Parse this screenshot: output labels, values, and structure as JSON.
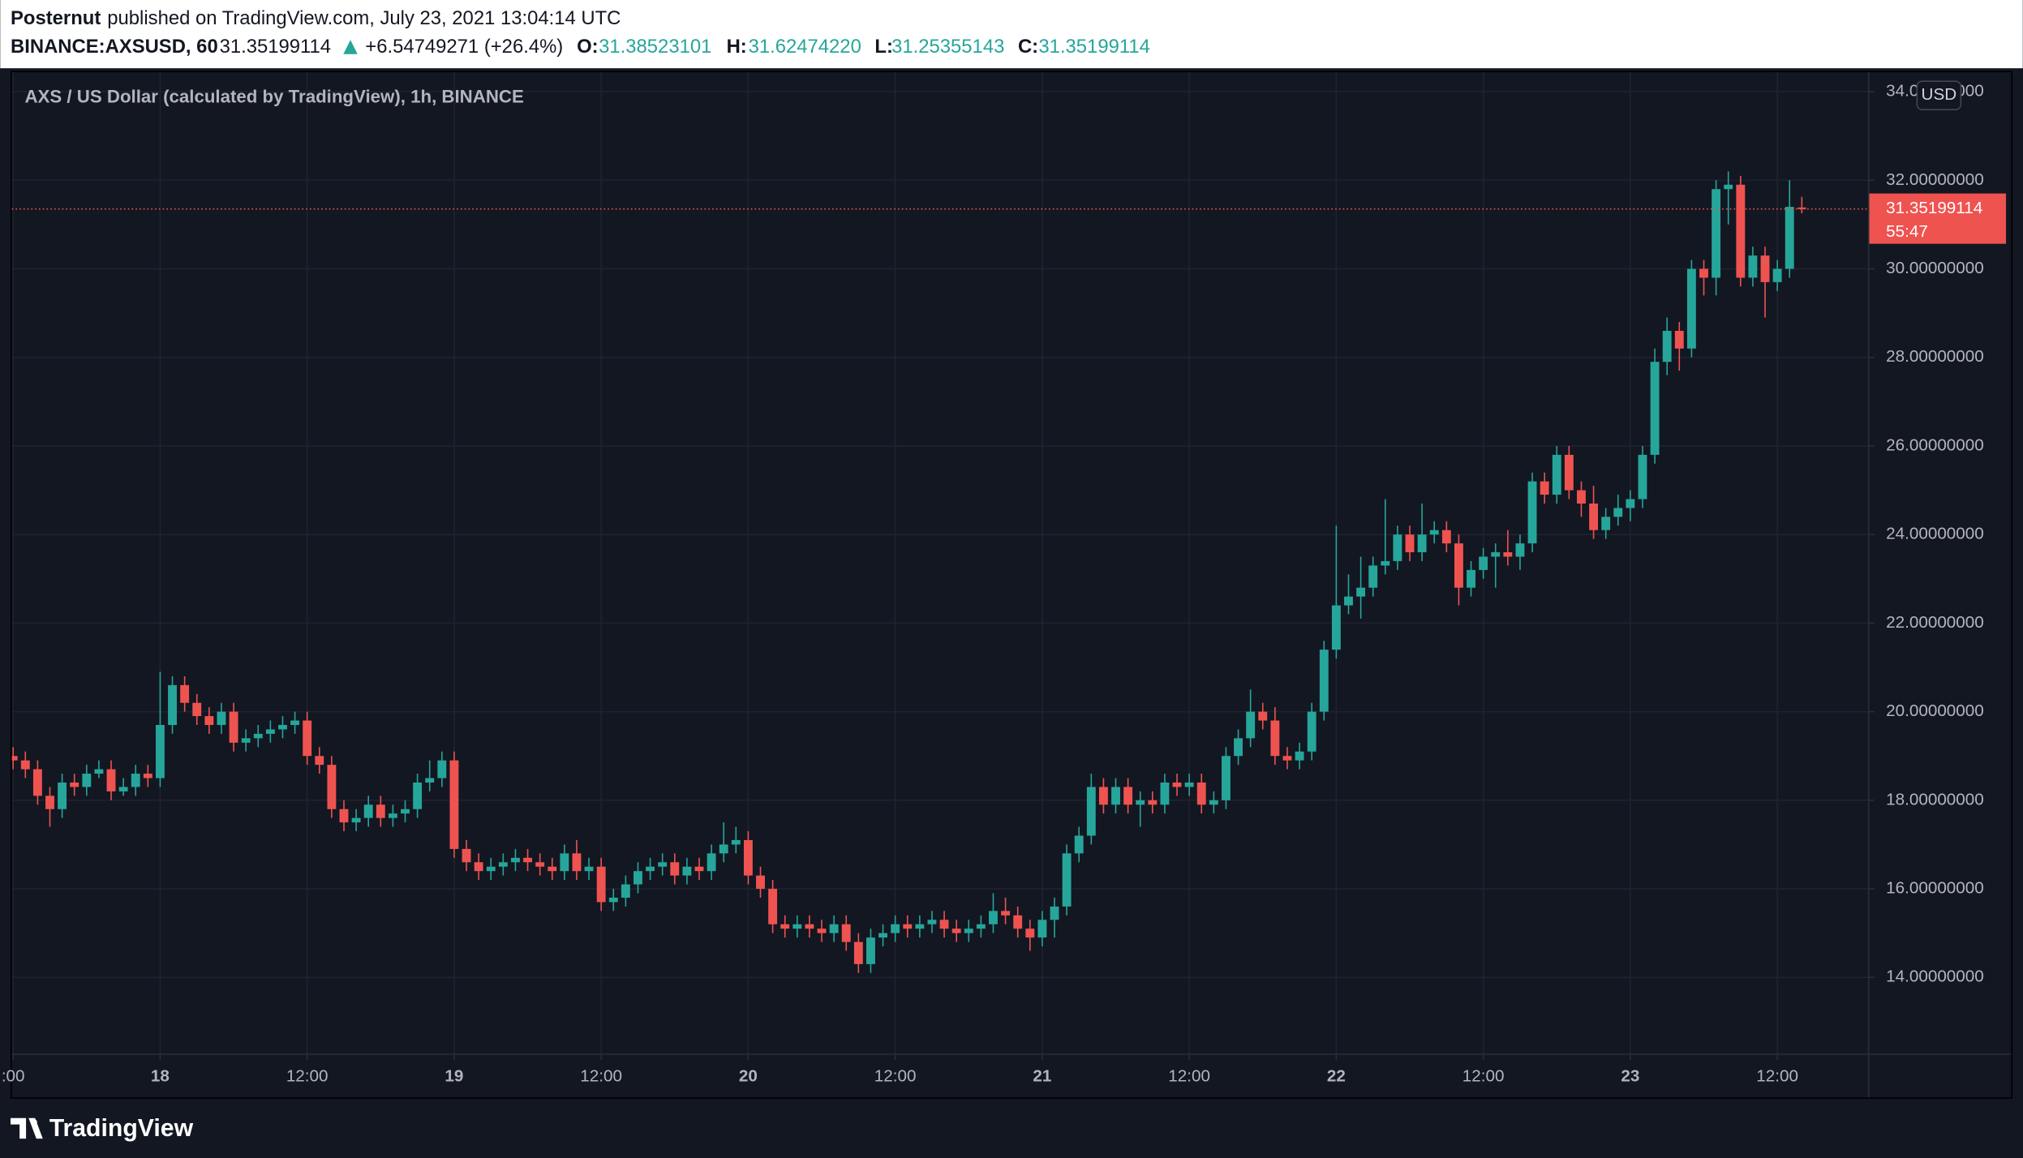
{
  "header": {
    "publisher": "Posternut",
    "published": "published on TradingView.com, July 23, 2021 13:04:14 UTC",
    "symbol": "BINANCE:AXSUSD, 60",
    "change": "+6.54749271 (+26.4%)",
    "ohlc_labels": [
      "O:",
      "H:",
      "L:",
      "C:"
    ]
  },
  "footer": {
    "logo": "TradingView"
  },
  "chart_data": {
    "type": "candlestick",
    "title": "AXS / US Dollar (calculated by TradingView), 1h, BINANCE",
    "currency": "USD",
    "countdown": "55:47",
    "last_bar_labels": [
      "31.38523101",
      "31.62474220",
      "31.25355143",
      "31.35199114"
    ],
    "up_color": "#26a69a",
    "down_color": "#ef5350",
    "grid": true,
    "xlim": [
      0,
      151.4
    ],
    "ylim": [
      12.28,
      34.44
    ],
    "xticks": [
      {
        "value": 0,
        "label": ":00"
      },
      {
        "value": 12,
        "label": "18"
      },
      {
        "value": 24,
        "label": "12:00"
      },
      {
        "value": 36,
        "label": "19"
      },
      {
        "value": 48,
        "label": "12:00"
      },
      {
        "value": 60,
        "label": "20"
      },
      {
        "value": 72,
        "label": "12:00"
      },
      {
        "value": 84,
        "label": "21"
      },
      {
        "value": 96,
        "label": "12:00"
      },
      {
        "value": 108,
        "label": "22"
      },
      {
        "value": 120,
        "label": "12:00"
      },
      {
        "value": 132,
        "label": "23"
      },
      {
        "value": 144,
        "label": "12:00"
      }
    ],
    "yticks": [
      {
        "value": 14,
        "label": "14.00000000"
      },
      {
        "value": 16,
        "label": "16.00000000"
      },
      {
        "value": 18,
        "label": "18.00000000"
      },
      {
        "value": 20,
        "label": "20.00000000"
      },
      {
        "value": 22,
        "label": "22.00000000"
      },
      {
        "value": 24,
        "label": "24.00000000"
      },
      {
        "value": 26,
        "label": "26.00000000"
      },
      {
        "value": 28,
        "label": "28.00000000"
      },
      {
        "value": 30,
        "label": "30.00000000"
      },
      {
        "value": 32,
        "label": "32.00000000"
      },
      {
        "value": 34,
        "label": "34.00000000"
      }
    ],
    "open": [
      19.0,
      18.9,
      18.7,
      18.1,
      17.8,
      18.4,
      18.3,
      18.6,
      18.7,
      18.2,
      18.3,
      18.6,
      18.5,
      19.7,
      20.6,
      20.2,
      19.9,
      19.7,
      20.0,
      19.3,
      19.4,
      19.5,
      19.6,
      19.7,
      19.8,
      19.0,
      18.8,
      17.8,
      17.5,
      17.6,
      17.9,
      17.6,
      17.7,
      17.8,
      18.4,
      18.5,
      18.9,
      16.9,
      16.6,
      16.4,
      16.5,
      16.6,
      16.7,
      16.6,
      16.5,
      16.4,
      16.8,
      16.4,
      16.5,
      15.7,
      15.8,
      16.1,
      16.4,
      16.5,
      16.6,
      16.3,
      16.5,
      16.4,
      16.8,
      17.0,
      17.1,
      16.3,
      16.0,
      15.2,
      15.1,
      15.2,
      15.1,
      15.0,
      15.2,
      14.8,
      14.3,
      14.9,
      15.0,
      15.2,
      15.1,
      15.2,
      15.3,
      15.1,
      15.0,
      15.1,
      15.2,
      15.5,
      15.4,
      15.1,
      14.9,
      15.3,
      15.6,
      16.8,
      17.2,
      18.3,
      17.9,
      18.3,
      17.9,
      18.0,
      17.9,
      18.4,
      18.3,
      18.4,
      17.9,
      18.0,
      19.0,
      19.4,
      20.0,
      19.8,
      19.0,
      18.9,
      19.1,
      20.0,
      21.4,
      22.4,
      22.6,
      22.8,
      23.3,
      23.4,
      24.0,
      23.6,
      24.0,
      24.1,
      23.8,
      22.8,
      23.2,
      23.5,
      23.6,
      23.5,
      23.8,
      25.2,
      24.9,
      25.8,
      25.0,
      24.7,
      24.1,
      24.4,
      24.6,
      24.8,
      25.8,
      27.9,
      28.6,
      28.2,
      30.0,
      29.8,
      31.8,
      31.9,
      29.8,
      30.3,
      29.7,
      30.0,
      31.38523101
    ],
    "high": [
      19.2,
      19.1,
      18.9,
      18.3,
      18.6,
      18.6,
      18.8,
      18.9,
      18.9,
      18.5,
      18.8,
      18.8,
      20.9,
      20.8,
      20.8,
      20.4,
      20.1,
      20.2,
      20.2,
      19.6,
      19.7,
      19.8,
      19.9,
      20.0,
      20.0,
      19.2,
      19.0,
      18.0,
      17.8,
      18.1,
      18.1,
      17.9,
      18.0,
      18.6,
      18.9,
      19.1,
      19.1,
      17.1,
      16.8,
      16.7,
      16.8,
      16.9,
      16.9,
      16.8,
      16.7,
      17.0,
      17.1,
      16.7,
      16.7,
      16.0,
      16.3,
      16.6,
      16.7,
      16.8,
      16.8,
      16.7,
      16.7,
      17.0,
      17.5,
      17.4,
      17.3,
      16.5,
      16.2,
      15.4,
      15.4,
      15.4,
      15.3,
      15.4,
      15.4,
      15.0,
      15.1,
      15.2,
      15.4,
      15.4,
      15.4,
      15.5,
      15.5,
      15.3,
      15.3,
      15.4,
      15.9,
      15.8,
      15.6,
      15.3,
      15.5,
      15.8,
      17.0,
      17.4,
      18.6,
      18.5,
      18.5,
      18.5,
      18.2,
      18.2,
      18.6,
      18.6,
      18.6,
      18.6,
      18.2,
      19.2,
      19.6,
      20.5,
      20.2,
      20.1,
      19.2,
      19.3,
      20.2,
      21.6,
      24.2,
      23.1,
      23.5,
      23.5,
      24.8,
      24.2,
      24.2,
      24.7,
      24.3,
      24.3,
      24.0,
      23.4,
      23.7,
      23.8,
      24.1,
      24.0,
      25.4,
      25.4,
      26.0,
      26.0,
      25.2,
      25.1,
      24.6,
      24.9,
      25.0,
      26.0,
      28.2,
      28.9,
      28.8,
      30.2,
      30.2,
      32.0,
      32.2,
      32.1,
      30.5,
      30.5,
      30.2,
      32.0,
      31.6247422
    ],
    "low": [
      18.7,
      18.5,
      17.9,
      17.4,
      17.6,
      18.1,
      18.1,
      18.5,
      18.0,
      18.1,
      18.1,
      18.3,
      18.3,
      19.5,
      20.0,
      19.7,
      19.5,
      19.5,
      19.1,
      19.1,
      19.2,
      19.3,
      19.4,
      19.5,
      18.8,
      18.6,
      17.6,
      17.3,
      17.3,
      17.4,
      17.4,
      17.4,
      17.5,
      17.6,
      18.2,
      18.3,
      16.7,
      16.4,
      16.2,
      16.2,
      16.3,
      16.4,
      16.4,
      16.3,
      16.2,
      16.2,
      16.2,
      16.2,
      15.5,
      15.5,
      15.6,
      15.9,
      16.2,
      16.3,
      16.1,
      16.1,
      16.2,
      16.2,
      16.6,
      16.8,
      16.1,
      15.8,
      15.0,
      14.9,
      14.9,
      14.9,
      14.8,
      14.8,
      14.6,
      14.1,
      14.1,
      14.7,
      14.8,
      14.9,
      14.9,
      15.0,
      14.9,
      14.8,
      14.8,
      14.9,
      15.0,
      15.2,
      14.9,
      14.6,
      14.7,
      14.9,
      15.4,
      16.6,
      17.0,
      17.7,
      17.7,
      17.7,
      17.4,
      17.7,
      17.7,
      18.1,
      18.1,
      17.7,
      17.7,
      17.8,
      18.8,
      19.2,
      19.6,
      18.8,
      18.7,
      18.7,
      18.9,
      19.8,
      21.2,
      22.2,
      22.1,
      22.6,
      23.1,
      23.2,
      23.4,
      23.4,
      23.8,
      23.6,
      22.4,
      22.6,
      23.0,
      22.8,
      23.3,
      23.2,
      23.6,
      24.7,
      24.7,
      24.8,
      24.4,
      23.9,
      23.9,
      24.2,
      24.3,
      24.6,
      25.6,
      27.6,
      27.7,
      28.0,
      29.4,
      29.4,
      31.0,
      29.6,
      29.6,
      28.9,
      29.5,
      29.8,
      31.25355143
    ],
    "close": [
      18.9,
      18.7,
      18.1,
      17.8,
      18.4,
      18.3,
      18.6,
      18.7,
      18.2,
      18.3,
      18.6,
      18.5,
      19.7,
      20.6,
      20.2,
      19.9,
      19.7,
      20.0,
      19.3,
      19.4,
      19.5,
      19.6,
      19.7,
      19.8,
      19.0,
      18.8,
      17.8,
      17.5,
      17.6,
      17.9,
      17.6,
      17.7,
      17.8,
      18.4,
      18.5,
      18.9,
      16.9,
      16.6,
      16.4,
      16.5,
      16.6,
      16.7,
      16.6,
      16.5,
      16.4,
      16.8,
      16.4,
      16.5,
      15.7,
      15.8,
      16.1,
      16.4,
      16.5,
      16.6,
      16.3,
      16.5,
      16.4,
      16.8,
      17.0,
      17.1,
      16.3,
      16.0,
      15.2,
      15.1,
      15.2,
      15.1,
      15.0,
      15.2,
      14.8,
      14.3,
      14.9,
      15.0,
      15.2,
      15.1,
      15.2,
      15.3,
      15.1,
      15.0,
      15.1,
      15.2,
      15.5,
      15.4,
      15.1,
      14.9,
      15.3,
      15.6,
      16.8,
      17.2,
      18.3,
      17.9,
      18.3,
      17.9,
      18.0,
      17.9,
      18.4,
      18.3,
      18.4,
      17.9,
      18.0,
      19.0,
      19.4,
      20.0,
      19.8,
      19.0,
      18.9,
      19.1,
      20.0,
      21.4,
      22.4,
      22.6,
      22.8,
      23.3,
      23.4,
      24.0,
      23.6,
      24.0,
      24.1,
      23.8,
      22.8,
      23.2,
      23.5,
      23.6,
      23.5,
      23.8,
      25.2,
      24.9,
      25.8,
      25.0,
      24.7,
      24.1,
      24.4,
      24.6,
      24.8,
      25.8,
      27.9,
      28.6,
      28.2,
      30.0,
      29.8,
      31.8,
      31.9,
      29.8,
      30.3,
      29.7,
      30.0,
      31.4,
      31.35199114
    ]
  }
}
